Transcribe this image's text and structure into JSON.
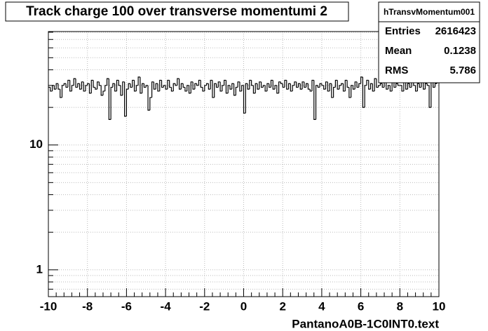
{
  "chart_data": {
    "type": "histogram",
    "title": "Track charge 100 over transverse momentumi 2",
    "xlabel": "PantanoA0B-1C0INT0.text",
    "stats": {
      "title": "hTransvMomentum001",
      "rows": [
        {
          "label": "Entries",
          "value": 2616423
        },
        {
          "label": "Mean",
          "value": 0.1238
        },
        {
          "label": "RMS",
          "value": 5.786
        }
      ]
    },
    "bins": [
      -10,
      -9.9,
      -9.8,
      -9.7,
      -9.6,
      -9.5,
      -9.4,
      -9.3,
      -9.2,
      -9.1,
      -9,
      -8.9,
      -8.8,
      -8.7,
      -8.6,
      -8.5,
      -8.4,
      -8.3,
      -8.2,
      -8.1,
      -8,
      -7.9,
      -7.8,
      -7.7,
      -7.6,
      -7.5,
      -7.4,
      -7.3,
      -7.2,
      -7.1,
      -7,
      -6.9,
      -6.8,
      -6.7,
      -6.6,
      -6.5,
      -6.4,
      -6.3,
      -6.2,
      -6.1,
      -6,
      -5.9,
      -5.8,
      -5.7,
      -5.6,
      -5.5,
      -5.4,
      -5.3,
      -5.2,
      -5.1,
      -5,
      -4.9,
      -4.8,
      -4.7,
      -4.6,
      -4.5,
      -4.4,
      -4.3,
      -4.2,
      -4.1,
      -4,
      -3.9,
      -3.8,
      -3.7,
      -3.6,
      -3.5,
      -3.4,
      -3.3,
      -3.2,
      -3.1,
      -3,
      -2.9,
      -2.8,
      -2.7,
      -2.6,
      -2.5,
      -2.4,
      -2.3,
      -2.2,
      -2.1,
      -2,
      -1.9,
      -1.8,
      -1.7,
      -1.6,
      -1.5,
      -1.4,
      -1.3,
      -1.2,
      -1.1,
      -1,
      -0.9,
      -0.8,
      -0.7,
      -0.6,
      -0.5,
      -0.4,
      -0.3,
      -0.2,
      -0.1,
      0,
      0.1,
      0.2,
      0.3,
      0.4,
      0.5,
      0.6,
      0.7,
      0.8,
      0.9,
      1,
      1.1,
      1.2,
      1.3,
      1.4,
      1.5,
      1.6,
      1.7,
      1.8,
      1.9,
      2,
      2.1,
      2.2,
      2.3,
      2.4,
      2.5,
      2.6,
      2.7,
      2.8,
      2.9,
      3,
      3.1,
      3.2,
      3.3,
      3.4,
      3.5,
      3.6,
      3.7,
      3.8,
      3.9,
      4,
      4.1,
      4.2,
      4.3,
      4.4,
      4.5,
      4.6,
      4.7,
      4.8,
      4.9,
      5,
      5.1,
      5.2,
      5.3,
      5.4,
      5.5,
      5.6,
      5.7,
      5.8,
      5.9,
      6,
      6.1,
      6.2,
      6.3,
      6.4,
      6.5,
      6.6,
      6.7,
      6.8,
      6.9,
      7,
      7.1,
      7.2,
      7.3,
      7.4,
      7.5,
      7.6,
      7.7,
      7.8,
      7.9,
      8,
      8.1,
      8.2,
      8.3,
      8.4,
      8.5,
      8.6,
      8.7,
      8.8,
      8.9,
      9,
      9.1,
      9.2,
      9.3,
      9.4,
      9.5,
      9.6,
      9.7,
      9.8,
      9.9,
      10
    ],
    "values": [
      29,
      27,
      30,
      28,
      31,
      28,
      24,
      30,
      31,
      29,
      33,
      27,
      30,
      34,
      29,
      31,
      28,
      32,
      27,
      30,
      31,
      26,
      33,
      29,
      28,
      32,
      30,
      25,
      27,
      30,
      34,
      16,
      29,
      31,
      27,
      33,
      30,
      25,
      32,
      17,
      28,
      31,
      29,
      33,
      27,
      30,
      35,
      26,
      31,
      29,
      30,
      19,
      24,
      32,
      28,
      31,
      27,
      33,
      29,
      30,
      28,
      33,
      29,
      27,
      31,
      30,
      34,
      28,
      31,
      29,
      27,
      30,
      26,
      32,
      28,
      31,
      30,
      33,
      29,
      27,
      30,
      31,
      28,
      33,
      24,
      31,
      29,
      32,
      27,
      30,
      33,
      26,
      30,
      28,
      31,
      25,
      29,
      32,
      27,
      30,
      18,
      31,
      28,
      33,
      30,
      26,
      31,
      28,
      32,
      29,
      30,
      27,
      31,
      29,
      33,
      28,
      30,
      26,
      32,
      31,
      29,
      33,
      28,
      31,
      27,
      30,
      32,
      29,
      31,
      28,
      32,
      29,
      31,
      28,
      27,
      33,
      16,
      30,
      29,
      31,
      30,
      28,
      32,
      27,
      31,
      24,
      29,
      33,
      28,
      30,
      31,
      27,
      33,
      29,
      24,
      30,
      28,
      32,
      29,
      31,
      35,
      20,
      30,
      33,
      28,
      31,
      27,
      34,
      29,
      30,
      31,
      29,
      33,
      28,
      30,
      27,
      32,
      29,
      31,
      30,
      30,
      27,
      33,
      28,
      31,
      29,
      32,
      30,
      27,
      31,
      29,
      32,
      28,
      31,
      30,
      20,
      33,
      29,
      31,
      32
    ],
    "color": "#000000",
    "xlim": [
      -10,
      10
    ],
    "xticks": [
      -10,
      -8,
      -6,
      -4,
      -2,
      0,
      2,
      4,
      6,
      8,
      10
    ],
    "ylim": [
      0.61,
      81
    ],
    "yticks": [
      1,
      10
    ],
    "log_y": true,
    "grid": true
  }
}
